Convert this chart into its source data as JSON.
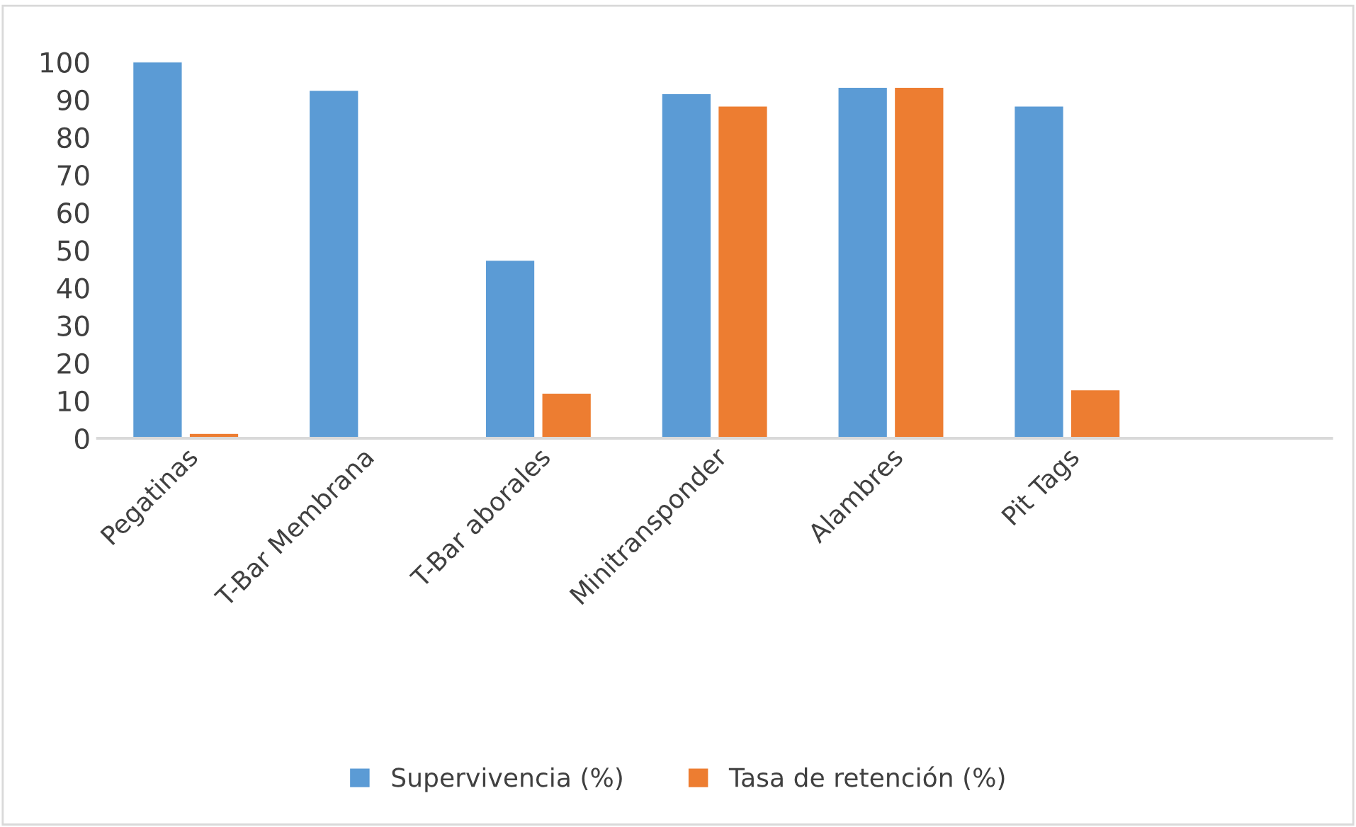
{
  "chart_data": {
    "type": "bar",
    "categories": [
      "Pegatinas",
      "T-Bar Membrana",
      "T-Bar aborales",
      "Minitransponder",
      "Alambres",
      "Pit Tags",
      null
    ],
    "series": [
      {
        "name": "Supervivencia (%)",
        "color": "#5b9bd5",
        "values": [
          100,
          92.5,
          47.3,
          91.6,
          93.3,
          88.3,
          null
        ]
      },
      {
        "name": "Tasa de retención (%)",
        "color": "#ed7d31",
        "values": [
          1.3,
          null,
          12.0,
          88.3,
          93.3,
          12.9,
          null
        ]
      }
    ],
    "ylim": [
      0,
      100
    ],
    "yticks": [
      0,
      10,
      20,
      30,
      40,
      50,
      60,
      70,
      80,
      90,
      100
    ],
    "grid": false,
    "legend": "bottom"
  }
}
